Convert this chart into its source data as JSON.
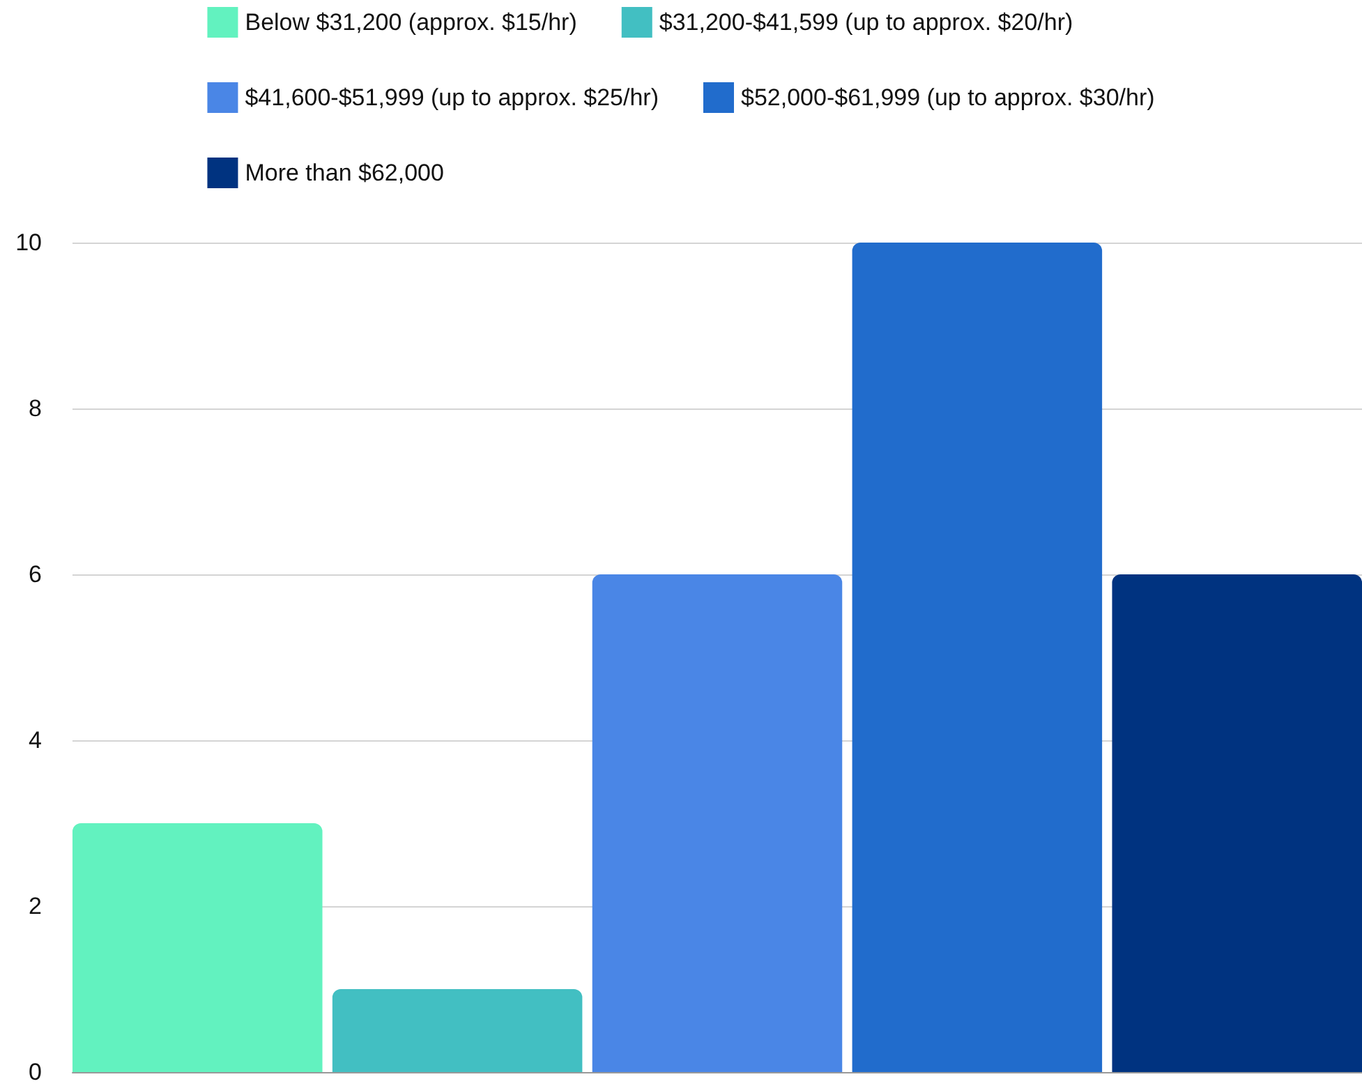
{
  "chart_data": {
    "type": "bar",
    "categories": [
      null
    ],
    "series": [
      {
        "name": "Below $31,200 (approx. $15/hr)",
        "color": "#62f2bf",
        "values": [
          3
        ]
      },
      {
        "name": "$31,200-$41,599 (up to approx. $20/hr)",
        "color": "#42bfc2",
        "values": [
          1
        ]
      },
      {
        "name": "$41,600-$51,999 (up to approx. $25/hr)",
        "color": "#4a86e6",
        "values": [
          6
        ]
      },
      {
        "name": "$52,000-$61,999 (up to approx. $30/hr)",
        "color": "#216ccc",
        "values": [
          10
        ]
      },
      {
        "name": "More than $62,000",
        "color": "#003380",
        "values": [
          6
        ]
      }
    ],
    "ylim": [
      0,
      10
    ],
    "yticks": [
      0,
      2,
      4,
      6,
      8,
      10
    ],
    "grid": "y",
    "legend": "top"
  }
}
